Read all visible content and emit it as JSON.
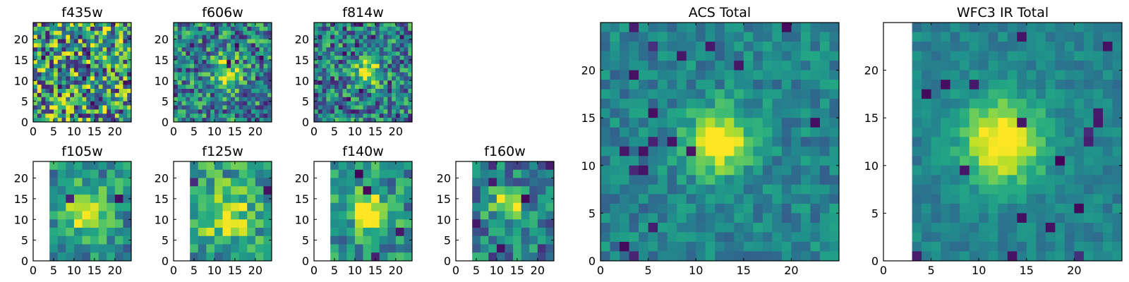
{
  "chart_data": {
    "type": "heatmap",
    "colormap": "viridis",
    "grid": false,
    "panels": [
      {
        "id": "f435w",
        "title": "f435w",
        "kind": "small",
        "xticks": [
          0,
          5,
          10,
          15,
          20
        ],
        "yticks": [
          0,
          5,
          10,
          15,
          20
        ],
        "xlim": [
          0,
          24
        ],
        "ylim": [
          0,
          24
        ],
        "nx": 24,
        "ny": 24,
        "blank_left_cols": 0,
        "blank_top_rows": 0,
        "peak": [
          12,
          11
        ],
        "peak_amp": 0.05,
        "peak_sigma": 3.0,
        "noise": 0.95,
        "base": 0.55
      },
      {
        "id": "f606w",
        "title": "f606w",
        "kind": "small",
        "xticks": [
          0,
          5,
          10,
          15,
          20
        ],
        "yticks": [
          0,
          5,
          10,
          15,
          20
        ],
        "xlim": [
          0,
          24
        ],
        "ylim": [
          0,
          24
        ],
        "nx": 24,
        "ny": 24,
        "blank_left_cols": 0,
        "blank_top_rows": 0,
        "peak": [
          13,
          12
        ],
        "peak_amp": 0.45,
        "peak_sigma": 2.3,
        "noise": 0.7,
        "base": 0.45
      },
      {
        "id": "f814w",
        "title": "f814w",
        "kind": "small",
        "xticks": [
          0,
          5,
          10,
          15,
          20
        ],
        "yticks": [
          0,
          5,
          10,
          15,
          20
        ],
        "xlim": [
          0,
          24
        ],
        "ylim": [
          0,
          24
        ],
        "nx": 24,
        "ny": 24,
        "blank_left_cols": 0,
        "blank_top_rows": 0,
        "peak": [
          13,
          12
        ],
        "peak_amp": 0.5,
        "peak_sigma": 2.3,
        "noise": 0.7,
        "base": 0.42
      },
      {
        "id": "f105w",
        "title": "f105w",
        "kind": "small",
        "xticks": [
          0,
          5,
          10,
          15,
          20
        ],
        "yticks": [
          0,
          5,
          10,
          15,
          20
        ],
        "xlim": [
          0,
          24
        ],
        "ylim": [
          0,
          24
        ],
        "nx": 12,
        "ny": 12,
        "blank_left_cols": 2,
        "blank_top_rows": 0,
        "peak": [
          13,
          12
        ],
        "peak_amp": 0.45,
        "peak_sigma": 3.5,
        "noise": 0.45,
        "base": 0.5
      },
      {
        "id": "f125w",
        "title": "f125w",
        "kind": "small",
        "xticks": [
          0,
          5,
          10,
          15,
          20
        ],
        "yticks": [
          0,
          5,
          10,
          15,
          20
        ],
        "xlim": [
          0,
          24
        ],
        "ylim": [
          0,
          24
        ],
        "nx": 12,
        "ny": 12,
        "blank_left_cols": 2,
        "blank_top_rows": 0,
        "peak": [
          13,
          11
        ],
        "peak_amp": 0.35,
        "peak_sigma": 4.0,
        "noise": 0.5,
        "base": 0.55
      },
      {
        "id": "f140w",
        "title": "f140w",
        "kind": "small",
        "xticks": [
          0,
          5,
          10,
          15,
          20
        ],
        "yticks": [
          0,
          5,
          10,
          15,
          20
        ],
        "xlim": [
          0,
          24
        ],
        "ylim": [
          0,
          24
        ],
        "nx": 12,
        "ny": 12,
        "blank_left_cols": 2,
        "blank_top_rows": 0,
        "peak": [
          13,
          12
        ],
        "peak_amp": 0.45,
        "peak_sigma": 3.2,
        "noise": 0.5,
        "base": 0.5
      },
      {
        "id": "f160w",
        "title": "f160w",
        "kind": "small",
        "xticks": [
          0,
          5,
          10,
          15,
          20
        ],
        "yticks": [
          0,
          5,
          10,
          15,
          20
        ],
        "xlim": [
          0,
          24
        ],
        "ylim": [
          0,
          24
        ],
        "nx": 12,
        "ny": 12,
        "blank_left_cols": 2,
        "blank_top_rows": 0,
        "peak": [
          13,
          13
        ],
        "peak_amp": 0.5,
        "peak_sigma": 3.0,
        "noise": 0.55,
        "base": 0.4
      },
      {
        "id": "acs-total",
        "title": "ACS Total",
        "kind": "large",
        "xticks": [
          0,
          5,
          10,
          15,
          20
        ],
        "yticks": [
          0,
          5,
          10,
          15,
          20
        ],
        "xlim": [
          0,
          25
        ],
        "ylim": [
          0,
          25
        ],
        "nx": 25,
        "ny": 25,
        "blank_left_cols": 0,
        "blank_top_rows": 0,
        "peak": [
          12.5,
          12.5
        ],
        "peak_amp": 0.5,
        "peak_sigma": 2.3,
        "noise": 0.3,
        "base": 0.45
      },
      {
        "id": "wfc3-ir-total",
        "title": "WFC3 IR Total",
        "kind": "large",
        "xticks": [
          0,
          5,
          10,
          15,
          20
        ],
        "yticks": [
          0,
          5,
          10,
          15,
          20
        ],
        "xlim": [
          0,
          25
        ],
        "ylim": [
          0,
          25
        ],
        "nx": 25,
        "ny": 25,
        "blank_left_cols": 3,
        "blank_top_rows": 0,
        "peak": [
          12.5,
          12.5
        ],
        "peak_amp": 0.55,
        "peak_sigma": 2.8,
        "noise": 0.2,
        "base": 0.45
      }
    ]
  }
}
